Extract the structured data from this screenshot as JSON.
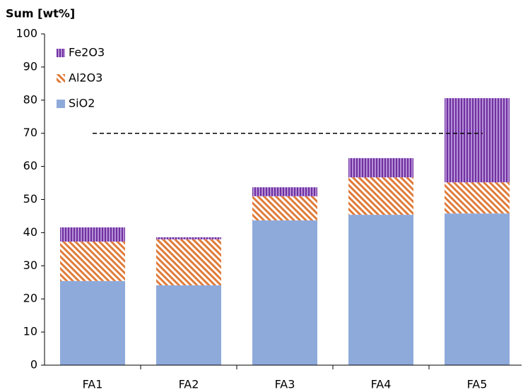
{
  "chart_data": {
    "type": "stacked_bar",
    "title": "Sum [wt%]",
    "categories": [
      "FA1",
      "FA2",
      "FA3",
      "FA4",
      "FA5"
    ],
    "series": [
      {
        "name": "SiO2",
        "color": "#8eaadb",
        "pattern": "solid",
        "values": [
          25.4,
          24.1,
          43.7,
          45.4,
          45.8
        ]
      },
      {
        "name": "Al2O3",
        "color": "#e07b39",
        "pattern": "diagonal",
        "values": [
          11.9,
          13.9,
          7.3,
          11.3,
          9.4
        ]
      },
      {
        "name": "Fe2O3",
        "color": "#7030a0",
        "pattern": "vertical",
        "values": [
          4.3,
          0.6,
          2.7,
          5.8,
          25.4
        ]
      }
    ],
    "reference_line": 70,
    "ylim": [
      0,
      100
    ],
    "yticks": [
      0,
      10,
      20,
      30,
      40,
      50,
      60,
      70,
      80,
      90,
      100
    ],
    "legend": "upper left"
  }
}
